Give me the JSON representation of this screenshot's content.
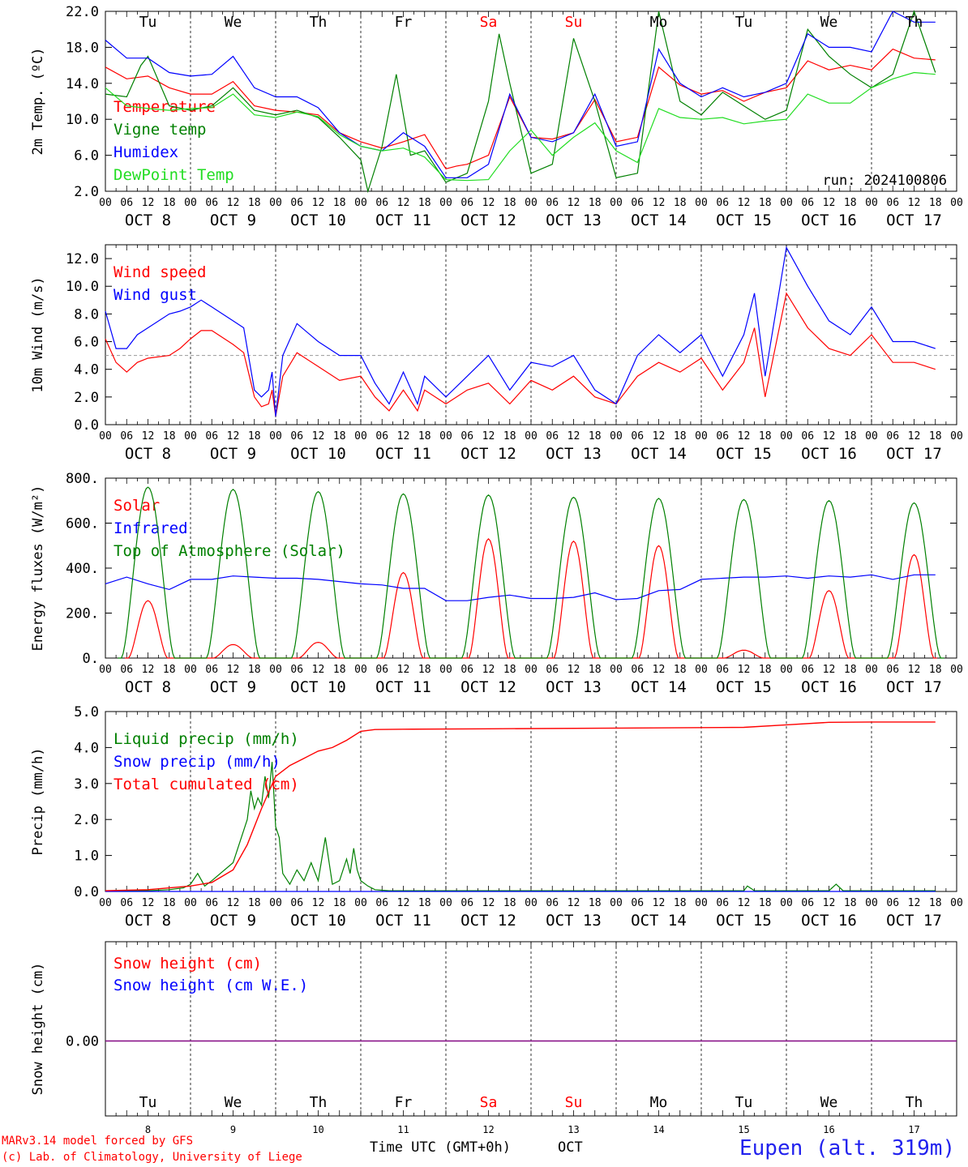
{
  "colors": {
    "red": "#ff0000",
    "green": "#008000",
    "blue": "#0000ff",
    "lightgreen": "#22dd22",
    "purple": "#800080",
    "axis": "#000000"
  },
  "days": [
    {
      "abbr": "Tu",
      "num": "8",
      "label": "OCT  8",
      "weekend": false
    },
    {
      "abbr": "We",
      "num": "9",
      "label": "OCT  9",
      "weekend": false
    },
    {
      "abbr": "Th",
      "num": "10",
      "label": "OCT 10",
      "weekend": false
    },
    {
      "abbr": "Fr",
      "num": "11",
      "label": "OCT 11",
      "weekend": false
    },
    {
      "abbr": "Sa",
      "num": "12",
      "label": "OCT 12",
      "weekend": true
    },
    {
      "abbr": "Su",
      "num": "13",
      "label": "OCT 13",
      "weekend": true
    },
    {
      "abbr": "Mo",
      "num": "14",
      "label": "OCT 14",
      "weekend": false
    },
    {
      "abbr": "Tu",
      "num": "15",
      "label": "OCT 15",
      "weekend": false
    },
    {
      "abbr": "We",
      "num": "16",
      "label": "OCT 16",
      "weekend": false
    },
    {
      "abbr": "Th",
      "num": "17",
      "label": "OCT 17",
      "weekend": false
    }
  ],
  "hour_labels": [
    "00",
    "06",
    "12",
    "18"
  ],
  "footer": {
    "credit_line1": "MARv3.14 model forced by GFS",
    "credit_line2": "(c) Lab. of Climatology, University of Liege",
    "xlabel": "Time UTC (GMT+0h)",
    "month": "OCT",
    "station": "Eupen (alt. 319m)"
  },
  "chart_data": [
    {
      "type": "line",
      "ylabel": "2m Temp. (ºC)",
      "ylim": [
        2,
        22
      ],
      "yticks": [
        "2.0",
        "6.0",
        "10.0",
        "14.0",
        "18.0",
        "22.0"
      ],
      "annotation": "run: 2024100806",
      "x_unit": "hours since OCT 8 00 UTC",
      "series": [
        {
          "name": "Temperature",
          "color": "red",
          "x": [
            0,
            6,
            12,
            18,
            24,
            30,
            36,
            42,
            48,
            54,
            60,
            66,
            72,
            78,
            84,
            90,
            96,
            99,
            102,
            108,
            114,
            120,
            126,
            132,
            138,
            144,
            150,
            156,
            162,
            168,
            174,
            180,
            186,
            192,
            198,
            204,
            210,
            216,
            222,
            228,
            234
          ],
          "values": [
            15.8,
            14.5,
            14.8,
            13.5,
            12.8,
            12.8,
            14.2,
            11.5,
            11,
            10.8,
            10.5,
            8.5,
            7.5,
            6.8,
            7.5,
            8.3,
            4.5,
            4.8,
            5,
            6,
            12.5,
            8,
            7.8,
            8.5,
            12.2,
            7.5,
            8,
            15.8,
            13.8,
            12.8,
            13.2,
            12,
            13,
            13.5,
            16.5,
            15.5,
            16,
            15.5,
            17.8,
            16.8,
            16.6
          ]
        },
        {
          "name": "Vigne temp",
          "color": "green",
          "x": [
            0,
            6,
            10,
            12,
            18,
            24,
            30,
            36,
            42,
            48,
            54,
            60,
            66,
            72,
            74,
            78,
            82,
            86,
            90,
            96,
            102,
            108,
            111,
            114,
            120,
            126,
            132,
            138,
            144,
            150,
            156,
            162,
            168,
            174,
            180,
            186,
            192,
            198,
            204,
            210,
            216,
            222,
            228,
            234
          ],
          "values": [
            12.8,
            12.5,
            16,
            17,
            11.5,
            11,
            11.5,
            13.5,
            11,
            10.5,
            11,
            10.2,
            8,
            5.5,
            2,
            7,
            15,
            6,
            6.5,
            3,
            4,
            12,
            19.5,
            14,
            4,
            5,
            19,
            12,
            3.5,
            4,
            22,
            12,
            10.5,
            13,
            11.5,
            10,
            11,
            20,
            17,
            15,
            13.5,
            15,
            22,
            15.2
          ]
        },
        {
          "name": "Humidex",
          "color": "blue",
          "x": [
            0,
            6,
            12,
            18,
            24,
            30,
            36,
            42,
            48,
            54,
            60,
            66,
            72,
            78,
            84,
            90,
            96,
            102,
            108,
            114,
            120,
            126,
            132,
            138,
            144,
            150,
            156,
            162,
            168,
            174,
            180,
            186,
            192,
            198,
            204,
            210,
            216,
            222,
            228,
            234
          ],
          "values": [
            18.8,
            16.8,
            16.8,
            15.2,
            14.8,
            15,
            17,
            13.5,
            12.5,
            12.5,
            11.3,
            8.5,
            7,
            6.5,
            8.5,
            7,
            3.5,
            3.5,
            5,
            12.8,
            8,
            7.5,
            8.5,
            12.8,
            7,
            7.5,
            17.8,
            14,
            12.5,
            13.5,
            12.5,
            13,
            14,
            19.5,
            18,
            18,
            17.5,
            22,
            20.8,
            20.8
          ]
        },
        {
          "name": "DewPoint Temp",
          "color": "lightgreen",
          "x": [
            0,
            6,
            12,
            18,
            24,
            30,
            36,
            42,
            48,
            54,
            60,
            66,
            72,
            78,
            84,
            90,
            96,
            102,
            108,
            114,
            120,
            126,
            132,
            138,
            144,
            150,
            156,
            162,
            168,
            174,
            180,
            186,
            192,
            198,
            204,
            210,
            216,
            222,
            228,
            234
          ],
          "values": [
            13.5,
            11.5,
            11.2,
            11,
            11.2,
            11.3,
            12.8,
            10.5,
            10.2,
            10.8,
            10.3,
            8.3,
            7,
            6.5,
            6.8,
            5.8,
            3.3,
            3.2,
            3.3,
            6.5,
            8.8,
            6,
            8,
            9.6,
            6.5,
            5.2,
            11.2,
            10.2,
            10,
            10.2,
            9.5,
            9.8,
            10,
            12.8,
            11.8,
            11.8,
            13.5,
            14.5,
            15.2,
            15
          ]
        }
      ]
    },
    {
      "type": "line",
      "ylabel": "10m Wind (m/s)",
      "ylim": [
        0,
        13
      ],
      "yticks": [
        "0.0",
        "2.0",
        "4.0",
        "6.0",
        "8.0",
        "10.0",
        "12.0"
      ],
      "reference_line": 5,
      "x_unit": "hours since OCT 8 00 UTC",
      "series": [
        {
          "name": "Wind speed",
          "color": "red",
          "x": [
            0,
            3,
            6,
            9,
            12,
            18,
            21,
            24,
            27,
            30,
            36,
            39,
            42,
            44,
            46,
            47,
            48,
            50,
            54,
            60,
            66,
            72,
            76,
            80,
            84,
            88,
            90,
            96,
            102,
            108,
            114,
            120,
            126,
            132,
            138,
            144,
            150,
            156,
            162,
            168,
            174,
            180,
            183,
            186,
            192,
            198,
            204,
            210,
            216,
            222,
            228,
            234
          ],
          "values": [
            6.2,
            4.5,
            3.8,
            4.5,
            4.8,
            5,
            5.5,
            6.2,
            6.8,
            6.8,
            5.8,
            5.2,
            2,
            1.3,
            1.5,
            2.5,
            0.6,
            3.5,
            5.2,
            4.2,
            3.2,
            3.5,
            2,
            1,
            2.5,
            1,
            2.5,
            1.5,
            2.5,
            3,
            1.5,
            3.2,
            2.5,
            3.5,
            2,
            1.5,
            3.5,
            4.5,
            3.8,
            4.8,
            2.5,
            4.5,
            7,
            2,
            9.5,
            7,
            5.5,
            5,
            6.5,
            4.5,
            4.5,
            4
          ]
        },
        {
          "name": "Wind gust",
          "color": "blue",
          "x": [
            0,
            3,
            6,
            9,
            12,
            18,
            21,
            24,
            27,
            30,
            36,
            39,
            42,
            44,
            46,
            47,
            48,
            50,
            54,
            60,
            66,
            72,
            76,
            80,
            84,
            88,
            90,
            96,
            102,
            108,
            114,
            120,
            126,
            132,
            138,
            144,
            150,
            156,
            162,
            168,
            174,
            180,
            183,
            186,
            192,
            198,
            204,
            210,
            216,
            222,
            228,
            234
          ],
          "values": [
            8.2,
            5.5,
            5.5,
            6.5,
            7,
            8,
            8.2,
            8.5,
            9,
            8.5,
            7.5,
            7,
            2.5,
            2,
            2.5,
            3.8,
            0.6,
            5,
            7.3,
            6,
            5,
            5,
            3,
            1.5,
            3.8,
            1.5,
            3.5,
            2,
            3.5,
            5,
            2.5,
            4.5,
            4.2,
            5,
            2.5,
            1.5,
            5,
            6.5,
            5.2,
            6.5,
            3.5,
            6.5,
            9.5,
            3.5,
            12.8,
            10,
            7.5,
            6.5,
            8.5,
            6,
            6,
            5.5
          ]
        }
      ]
    },
    {
      "type": "line",
      "ylabel": "Energy fluxes (W/m²)",
      "ylim": [
        0,
        800
      ],
      "yticks": [
        "0.",
        "200.",
        "400.",
        "600.",
        "800."
      ],
      "x_unit": "hours since OCT 8 00 UTC",
      "series": [
        {
          "name": "Solar",
          "color": "red",
          "peaks": [
            [
              12,
              255
            ],
            [
              36,
              60
            ],
            [
              60,
              70
            ],
            [
              84,
              380
            ],
            [
              108,
              530
            ],
            [
              132,
              520
            ],
            [
              156,
              500
            ],
            [
              180,
              35
            ],
            [
              204,
              300
            ],
            [
              228,
              460
            ]
          ]
        },
        {
          "name": "Infrared",
          "color": "blue",
          "x": [
            0,
            6,
            12,
            18,
            24,
            30,
            36,
            42,
            48,
            54,
            60,
            66,
            72,
            78,
            84,
            90,
            96,
            102,
            108,
            114,
            120,
            126,
            132,
            138,
            144,
            150,
            156,
            162,
            168,
            174,
            180,
            186,
            192,
            198,
            204,
            210,
            216,
            222,
            228,
            234
          ],
          "values": [
            330,
            360,
            330,
            305,
            350,
            350,
            365,
            360,
            355,
            355,
            350,
            340,
            330,
            325,
            310,
            310,
            255,
            255,
            270,
            280,
            265,
            265,
            270,
            290,
            260,
            265,
            300,
            305,
            350,
            355,
            360,
            360,
            365,
            355,
            365,
            360,
            370,
            350,
            370,
            370
          ]
        },
        {
          "name": "Top of Atmosphere (Solar)",
          "color": "green",
          "peaks": [
            [
              12,
              760
            ],
            [
              36,
              750
            ],
            [
              60,
              740
            ],
            [
              84,
              730
            ],
            [
              108,
              725
            ],
            [
              132,
              715
            ],
            [
              156,
              710
            ],
            [
              180,
              705
            ],
            [
              204,
              700
            ],
            [
              228,
              690
            ]
          ]
        }
      ]
    },
    {
      "type": "line",
      "ylabel": "Precip (mm/h)",
      "ylim": [
        0,
        5
      ],
      "yticks": [
        "0.0",
        "1.0",
        "2.0",
        "3.0",
        "4.0",
        "5.0"
      ],
      "x_unit": "hours since OCT 8 00 UTC",
      "series": [
        {
          "name": "Liquid precip (mm/h)",
          "color": "green",
          "x": [
            0,
            12,
            18,
            22,
            24,
            26,
            28,
            30,
            36,
            40,
            41,
            42,
            43,
            44,
            45,
            46,
            47,
            48,
            49,
            50,
            52,
            54,
            56,
            58,
            60,
            62,
            64,
            66,
            68,
            69,
            70,
            71,
            72,
            74,
            76,
            80,
            84,
            90,
            180,
            181,
            183,
            204,
            206,
            208,
            234
          ],
          "values": [
            0.02,
            0.02,
            0.05,
            0.1,
            0.2,
            0.5,
            0.15,
            0.3,
            0.8,
            2,
            2.8,
            2.3,
            2.6,
            2.4,
            3.2,
            2.6,
            3.6,
            1.8,
            1.5,
            0.5,
            0.2,
            0.6,
            0.3,
            0.8,
            0.3,
            1.5,
            0.2,
            0.3,
            0.9,
            0.5,
            1.2,
            0.6,
            0.3,
            0.15,
            0.05,
            0.02,
            0.02,
            0.02,
            0.02,
            0.15,
            0.02,
            0.02,
            0.2,
            0.02,
            0.02
          ]
        },
        {
          "name": "Snow precip (mm/h)",
          "color": "blue",
          "x": [
            0,
            234
          ],
          "values": [
            0,
            0
          ]
        },
        {
          "name": "Total cumulated (cm)",
          "color": "red",
          "x": [
            0,
            12,
            18,
            24,
            30,
            36,
            40,
            44,
            48,
            52,
            56,
            60,
            64,
            68,
            72,
            76,
            84,
            108,
            144,
            180,
            192,
            204,
            216,
            234
          ],
          "values": [
            0.02,
            0.05,
            0.1,
            0.15,
            0.25,
            0.6,
            1.3,
            2.3,
            3.2,
            3.5,
            3.7,
            3.9,
            4.0,
            4.2,
            4.45,
            4.5,
            4.51,
            4.52,
            4.54,
            4.56,
            4.63,
            4.7,
            4.71,
            4.71
          ]
        }
      ]
    },
    {
      "type": "line",
      "ylabel": "Snow height (cm)",
      "yticks": [
        "0.00"
      ],
      "x_unit": "hours since OCT 8 00 UTC",
      "series": [
        {
          "name": "Snow height (cm)",
          "color": "red",
          "x": [
            0,
            234
          ],
          "values": [
            0,
            0
          ]
        },
        {
          "name": "Snow height (cm W.E.)",
          "color": "blue",
          "x": [
            0,
            234
          ],
          "values": [
            0,
            0
          ]
        }
      ]
    }
  ]
}
